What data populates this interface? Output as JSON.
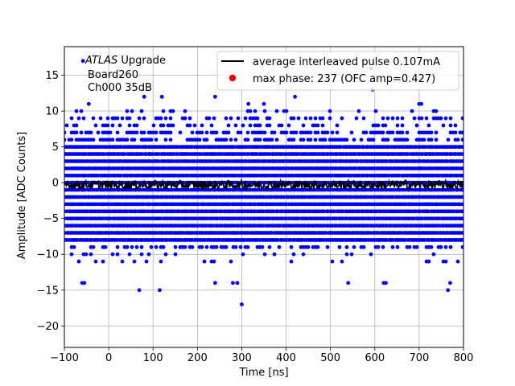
{
  "chart_data": {
    "type": "scatter",
    "xlabel": "Time [ns]",
    "ylabel": "Amplitude [ADC Counts]",
    "xlim": [
      -100,
      800
    ],
    "ylim": [
      -23,
      19
    ],
    "xticks": [
      -100,
      0,
      100,
      200,
      300,
      400,
      500,
      600,
      700,
      800
    ],
    "yticks": [
      -20,
      -15,
      -10,
      -5,
      0,
      5,
      10,
      15
    ],
    "grid": true,
    "legend_placement": "top-right",
    "annotation": {
      "experiment": "ATLAS",
      "experiment_suffix": " Upgrade",
      "board": "Board260",
      "channel": "Ch000 35dB"
    },
    "series": [
      {
        "name": "average interleaved pulse 0.107mA",
        "kind": "line",
        "color": "#000000",
        "description": "flat line near 0 ADC counts with small noise",
        "x_range": [
          -100,
          800
        ],
        "y_level": -0.3,
        "y_spread": 0.6
      },
      {
        "name": "max phase: 237 (OFC amp=0.427)",
        "kind": "marker",
        "color": "#ff0000",
        "points": []
      },
      {
        "name": "",
        "kind": "scatter",
        "color": "#0000ff",
        "description": "dense quantized noise samples, integer ADC levels",
        "x_range": [
          -100,
          800
        ],
        "dense_levels": [
          -8,
          -7,
          -6,
          -5,
          -4,
          -3,
          -2,
          -1,
          0,
          1,
          2,
          3,
          4,
          5
        ],
        "sparse_levels": [
          -11,
          -10,
          -9,
          6,
          7,
          8,
          9,
          10
        ],
        "outliers": [
          {
            "x": -58,
            "y": 17
          },
          {
            "x": -55,
            "y": -14
          },
          {
            "x": -60,
            "y": -14
          },
          {
            "x": -45,
            "y": 11
          },
          {
            "x": 69,
            "y": -15
          },
          {
            "x": 115,
            "y": -15
          },
          {
            "x": 300,
            "y": -17
          },
          {
            "x": 280,
            "y": -14
          },
          {
            "x": 290,
            "y": -14
          },
          {
            "x": 595,
            "y": 13
          },
          {
            "x": 592,
            "y": 16
          },
          {
            "x": 700,
            "y": 11
          },
          {
            "x": 705,
            "y": 11
          },
          {
            "x": 350,
            "y": 11
          },
          {
            "x": 315,
            "y": 11
          },
          {
            "x": 765,
            "y": -15
          },
          {
            "x": 770,
            "y": -14
          },
          {
            "x": 620,
            "y": -14
          },
          {
            "x": 625,
            "y": -14
          },
          {
            "x": 80,
            "y": 12
          },
          {
            "x": 120,
            "y": 12
          },
          {
            "x": 240,
            "y": 12
          },
          {
            "x": 420,
            "y": 12
          },
          {
            "x": 240,
            "y": -14
          },
          {
            "x": 540,
            "y": -14
          }
        ]
      }
    ]
  }
}
